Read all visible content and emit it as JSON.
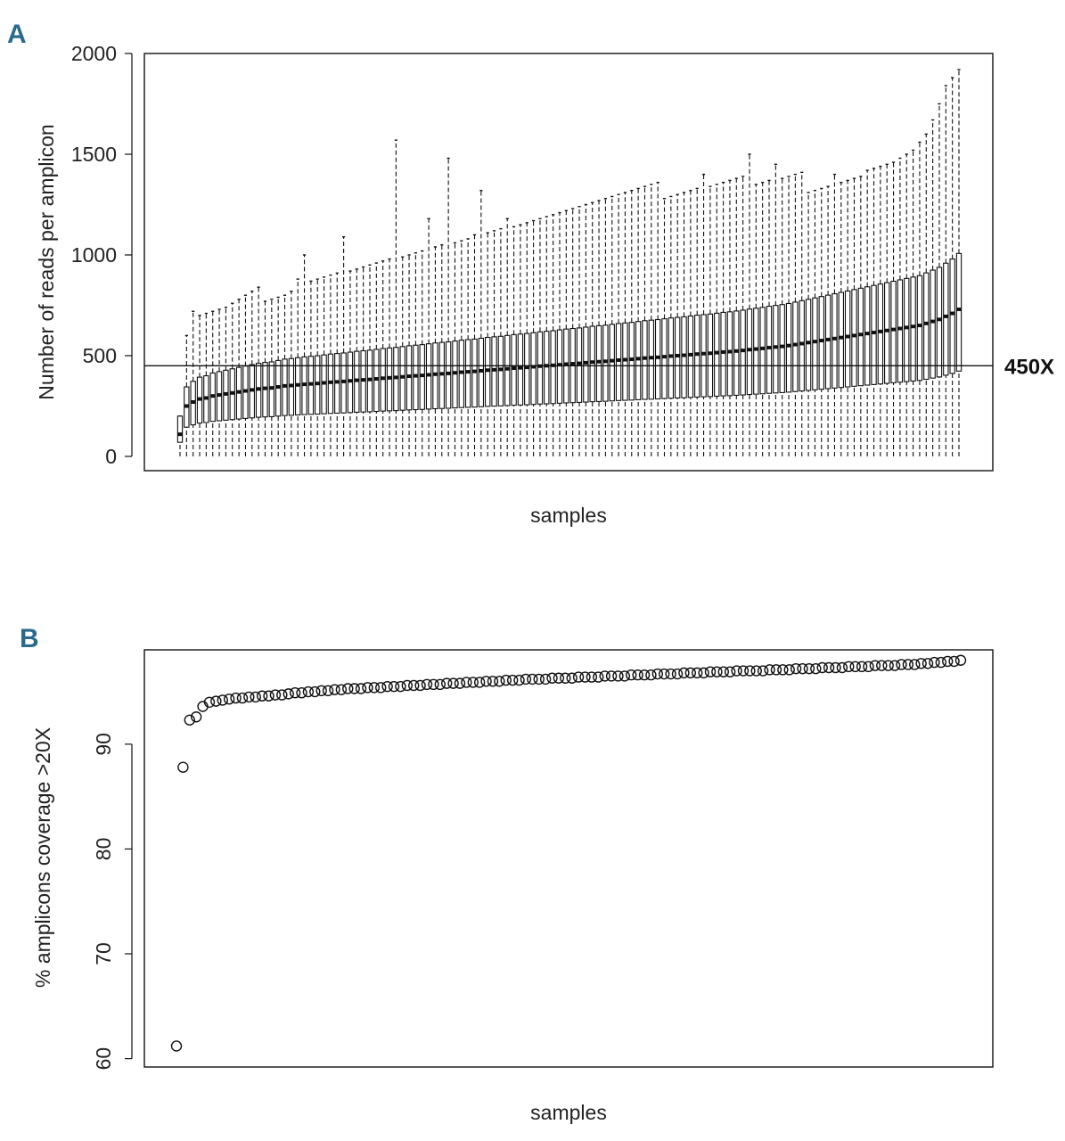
{
  "colors": {
    "panel_letter": "#2a6a8e",
    "ink": "#111111",
    "box_fill": "#ffffff",
    "background": "#ffffff"
  },
  "chart_data": [
    {
      "panel": "A",
      "type": "boxplot",
      "xlabel": "samples",
      "ylabel": "Number of reads per amplicon",
      "ylim": [
        0,
        2000
      ],
      "yticks": [
        0,
        500,
        1000,
        1500,
        2000
      ],
      "n_samples": 120,
      "whisker_style": "dashed",
      "reference_line": {
        "y": 450,
        "label": "450X"
      },
      "medians": [
        110,
        250,
        270,
        285,
        290,
        300,
        305,
        310,
        315,
        320,
        325,
        330,
        335,
        338,
        340,
        345,
        350,
        352,
        355,
        358,
        360,
        362,
        365,
        368,
        370,
        372,
        375,
        378,
        380,
        382,
        385,
        388,
        390,
        392,
        395,
        398,
        400,
        402,
        405,
        408,
        410,
        412,
        415,
        418,
        420,
        422,
        425,
        428,
        430,
        432,
        435,
        438,
        440,
        442,
        445,
        448,
        450,
        452,
        455,
        458,
        460,
        462,
        465,
        468,
        470,
        472,
        475,
        478,
        480,
        482,
        485,
        488,
        490,
        492,
        495,
        498,
        500,
        502,
        505,
        508,
        510,
        512,
        515,
        518,
        520,
        523,
        526,
        530,
        533,
        536,
        540,
        543,
        546,
        550,
        555,
        560,
        565,
        570,
        575,
        580,
        585,
        590,
        595,
        600,
        605,
        610,
        615,
        620,
        625,
        630,
        635,
        640,
        645,
        650,
        660,
        670,
        680,
        695,
        710,
        730
      ],
      "whisker_high": [
        200,
        600,
        720,
        700,
        710,
        720,
        730,
        740,
        760,
        780,
        800,
        820,
        840,
        770,
        780,
        790,
        800,
        820,
        880,
        1000,
        870,
        880,
        890,
        900,
        910,
        1090,
        920,
        930,
        940,
        950,
        960,
        970,
        980,
        1570,
        990,
        1000,
        1010,
        1020,
        1180,
        1040,
        1050,
        1480,
        1060,
        1070,
        1080,
        1100,
        1320,
        1110,
        1120,
        1130,
        1180,
        1140,
        1150,
        1160,
        1170,
        1180,
        1190,
        1200,
        1210,
        1220,
        1230,
        1240,
        1250,
        1260,
        1270,
        1280,
        1290,
        1300,
        1310,
        1320,
        1330,
        1340,
        1350,
        1360,
        1280,
        1290,
        1300,
        1310,
        1320,
        1330,
        1400,
        1340,
        1350,
        1360,
        1370,
        1380,
        1390,
        1500,
        1350,
        1360,
        1370,
        1450,
        1380,
        1390,
        1400,
        1410,
        1310,
        1320,
        1330,
        1340,
        1400,
        1360,
        1370,
        1380,
        1390,
        1420,
        1430,
        1440,
        1450,
        1460,
        1480,
        1500,
        1520,
        1560,
        1600,
        1670,
        1750,
        1840,
        1880,
        1920
      ]
    },
    {
      "panel": "B",
      "type": "scatter",
      "xlabel": "samples",
      "ylabel": "% amplicons coverage >20X",
      "ylim": [
        59.2,
        99
      ],
      "yticks": [
        60,
        70,
        80,
        90
      ],
      "marker": "open-circle",
      "y_values_sorted": [
        61.2,
        87.8,
        92.3,
        92.6,
        93.6,
        94.0,
        94.1,
        94.2,
        94.3,
        94.4,
        94.4,
        94.5,
        94.5,
        94.6,
        94.6,
        94.7,
        94.7,
        94.8,
        94.9,
        94.9,
        95.0,
        95.0,
        95.1,
        95.1,
        95.2,
        95.2,
        95.3,
        95.3,
        95.3,
        95.4,
        95.4,
        95.4,
        95.5,
        95.5,
        95.5,
        95.6,
        95.6,
        95.6,
        95.7,
        95.7,
        95.7,
        95.8,
        95.8,
        95.8,
        95.9,
        95.9,
        95.9,
        96.0,
        96.0,
        96.0,
        96.1,
        96.1,
        96.1,
        96.2,
        96.2,
        96.2,
        96.2,
        96.3,
        96.3,
        96.3,
        96.3,
        96.4,
        96.4,
        96.4,
        96.4,
        96.5,
        96.5,
        96.5,
        96.5,
        96.6,
        96.6,
        96.6,
        96.6,
        96.7,
        96.7,
        96.7,
        96.7,
        96.8,
        96.8,
        96.8,
        96.8,
        96.9,
        96.9,
        96.9,
        96.9,
        97.0,
        97.0,
        97.0,
        97.0,
        97.0,
        97.1,
        97.1,
        97.1,
        97.1,
        97.2,
        97.2,
        97.2,
        97.2,
        97.3,
        97.3,
        97.3,
        97.3,
        97.4,
        97.4,
        97.4,
        97.4,
        97.5,
        97.5,
        97.5,
        97.5,
        97.6,
        97.6,
        97.6,
        97.7,
        97.7,
        97.8,
        97.8,
        97.9,
        97.9,
        98.0
      ]
    }
  ],
  "panels": {
    "a_letter": "A",
    "b_letter": "B"
  }
}
